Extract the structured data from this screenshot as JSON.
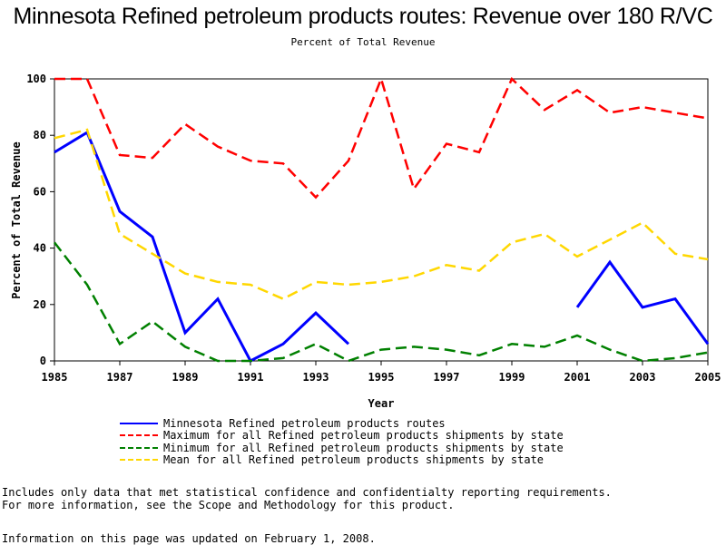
{
  "chart_data": {
    "type": "line",
    "title": "Minnesota Refined petroleum products routes: Revenue over 180 R/VC",
    "subtitle": "Percent of Total Revenue",
    "xlabel": "Year",
    "ylabel": "Percent of Total Revenue",
    "xlim": [
      1985,
      2005
    ],
    "ylim": [
      0,
      100
    ],
    "x_ticks": [
      1985,
      1987,
      1989,
      1991,
      1993,
      1995,
      1997,
      1999,
      2001,
      2003,
      2005
    ],
    "y_ticks": [
      0,
      20,
      40,
      60,
      80,
      100
    ],
    "grid": false,
    "legend_position": "bottom",
    "x": [
      1985,
      1986,
      1987,
      1988,
      1989,
      1990,
      1991,
      1992,
      1993,
      1994,
      1995,
      1996,
      1997,
      1998,
      1999,
      2000,
      2001,
      2002,
      2003,
      2004,
      2005
    ],
    "series": [
      {
        "name": "Minnesota Refined petroleum products routes",
        "color": "#0000ff",
        "style": "solid",
        "values": [
          74,
          81,
          53,
          44,
          10,
          22,
          0,
          6,
          17,
          6,
          null,
          null,
          null,
          null,
          null,
          null,
          19,
          35,
          19,
          22,
          6
        ]
      },
      {
        "name": "Maximum for all Refined petroleum products shipments by state",
        "color": "#ff0000",
        "style": "dashed",
        "values": [
          100,
          100,
          73,
          72,
          84,
          76,
          71,
          70,
          58,
          71,
          100,
          61,
          77,
          74,
          100,
          89,
          96,
          88,
          90,
          88,
          86
        ]
      },
      {
        "name": "Minimum for all Refined petroleum products shipments by state",
        "color": "#008000",
        "style": "dashed",
        "values": [
          42,
          27,
          6,
          14,
          5,
          0,
          0,
          1,
          6,
          0,
          4,
          5,
          4,
          2,
          6,
          5,
          9,
          4,
          0,
          1,
          3
        ]
      },
      {
        "name": "Mean for all Refined petroleum products shipments by state",
        "color": "#ffd700",
        "style": "dashed",
        "values": [
          79,
          82,
          45,
          38,
          31,
          28,
          27,
          22,
          28,
          27,
          28,
          30,
          34,
          32,
          42,
          45,
          37,
          43,
          49,
          38,
          36
        ]
      }
    ]
  },
  "notes": [
    "Includes only data that met statistical confidence and confidentialty reporting requirements.",
    "For more information, see the Scope and Methodology for this product."
  ],
  "updated": "Information on this page was updated on February 1, 2008."
}
